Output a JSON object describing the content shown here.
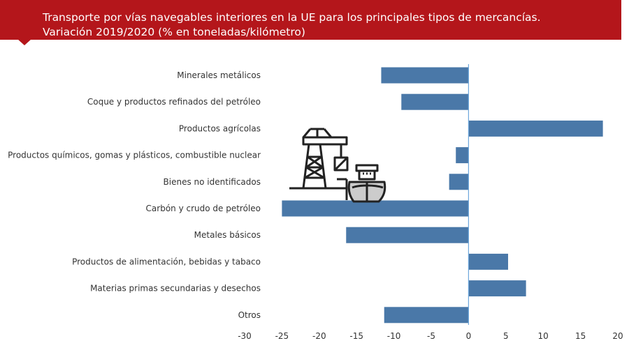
{
  "title": {
    "line1": "Transporte por vías navegables interiores en la UE para los principales tipos de mercancías.",
    "line2": "Variación 2019/2020 (% en toneladas/kilómetro)"
  },
  "colors": {
    "banner": "#b4161b",
    "bar": "#4a78a8",
    "axis": "#6fa8dc"
  },
  "icon": "port-crane-and-ship-icon",
  "chart_data": {
    "type": "bar",
    "orientation": "horizontal",
    "categories": [
      "Minerales metálicos",
      "Coque y productos refinados del petróleo",
      "Productos agrícolas",
      "Productos químicos, gomas y plásticos, combustible nuclear",
      "Bienes no identificados",
      "Carbón y crudo de petróleo",
      "Metales básicos",
      "Productos de alimentación, bebidas y tabaco",
      "Materias primas secundarias y desechos",
      "Otros"
    ],
    "values": [
      -11.7,
      -9.0,
      18.0,
      -1.7,
      -2.6,
      -25.0,
      -16.4,
      5.3,
      7.7,
      -11.3
    ],
    "xlim": [
      -30,
      20
    ],
    "xticks": [
      "-30",
      "-25",
      "-20",
      "-15",
      "-10",
      "-5",
      "0",
      "5",
      "10",
      "15",
      "20"
    ],
    "grid": false
  }
}
